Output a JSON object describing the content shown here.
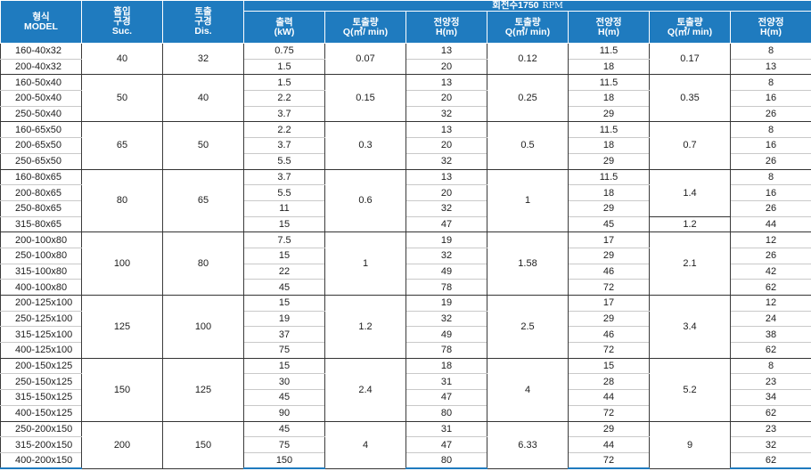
{
  "header": {
    "model": "형식\nMODEL",
    "suction": "흡입\n구경\nSuc.",
    "discharge": "토출\n구경\nDis.",
    "rpm_title": "회전수1750",
    "rpm_unit": "RPM",
    "output": "출력\n(kW)",
    "flow": "토출량\nQ(㎥/ min)",
    "head": "전양정\nH(m)"
  },
  "groups": [
    {
      "suction": "40",
      "discharge": "32",
      "flow1": "0.07",
      "flow2": "0.12",
      "flow3": "0.17",
      "rows": [
        {
          "model": "160-40x32",
          "kw": "0.75",
          "h1": "13",
          "h2": "11.5",
          "h3": "8"
        },
        {
          "model": "200-40x32",
          "kw": "1.5",
          "h1": "20",
          "h2": "18",
          "h3": "13"
        }
      ]
    },
    {
      "suction": "50",
      "discharge": "40",
      "flow1": "0.15",
      "flow2": "0.25",
      "flow3": "0.35",
      "rows": [
        {
          "model": "160-50x40",
          "kw": "1.5",
          "h1": "13",
          "h2": "11.5",
          "h3": "8"
        },
        {
          "model": "200-50x40",
          "kw": "2.2",
          "h1": "20",
          "h2": "18",
          "h3": "16"
        },
        {
          "model": "250-50x40",
          "kw": "3.7",
          "h1": "32",
          "h2": "29",
          "h3": "26"
        }
      ]
    },
    {
      "suction": "65",
      "discharge": "50",
      "flow1": "0.3",
      "flow2": "0.5",
      "flow3": "0.7",
      "rows": [
        {
          "model": "160-65x50",
          "kw": "2.2",
          "h1": "13",
          "h2": "11.5",
          "h3": "8"
        },
        {
          "model": "200-65x50",
          "kw": "3.7",
          "h1": "20",
          "h2": "18",
          "h3": "16"
        },
        {
          "model": "250-65x50",
          "kw": "5.5",
          "h1": "32",
          "h2": "29",
          "h3": "26"
        }
      ]
    },
    {
      "suction": "80",
      "discharge": "65",
      "flow1": "0.6",
      "flow2": "1",
      "flow3": "1.4",
      "flow3_last": "1.2",
      "rows": [
        {
          "model": "160-80x65",
          "kw": "3.7",
          "h1": "13",
          "h2": "11.5",
          "h3": "8"
        },
        {
          "model": "200-80x65",
          "kw": "5.5",
          "h1": "20",
          "h2": "18",
          "h3": "16"
        },
        {
          "model": "250-80x65",
          "kw": "11",
          "h1": "32",
          "h2": "29",
          "h3": "26"
        },
        {
          "model": "315-80x65",
          "kw": "15",
          "h1": "47",
          "h2": "45",
          "h3": "44"
        }
      ]
    },
    {
      "suction": "100",
      "discharge": "80",
      "flow1": "1",
      "flow2": "1.58",
      "flow3": "2.1",
      "rows": [
        {
          "model": "200-100x80",
          "kw": "7.5",
          "h1": "19",
          "h2": "17",
          "h3": "12"
        },
        {
          "model": "250-100x80",
          "kw": "15",
          "h1": "32",
          "h2": "29",
          "h3": "26"
        },
        {
          "model": "315-100x80",
          "kw": "22",
          "h1": "49",
          "h2": "46",
          "h3": "42"
        },
        {
          "model": "400-100x80",
          "kw": "45",
          "h1": "78",
          "h2": "72",
          "h3": "62"
        }
      ]
    },
    {
      "suction": "125",
      "discharge": "100",
      "flow1": "1.2",
      "flow2": "2.5",
      "flow3": "3.4",
      "rows": [
        {
          "model": "200-125x100",
          "kw": "15",
          "h1": "19",
          "h2": "17",
          "h3": "12"
        },
        {
          "model": "250-125x100",
          "kw": "19",
          "h1": "32",
          "h2": "29",
          "h3": "24"
        },
        {
          "model": "315-125x100",
          "kw": "37",
          "h1": "49",
          "h2": "46",
          "h3": "38"
        },
        {
          "model": "400-125x100",
          "kw": "75",
          "h1": "78",
          "h2": "72",
          "h3": "62"
        }
      ]
    },
    {
      "suction": "150",
      "discharge": "125",
      "flow1": "2.4",
      "flow2": "4",
      "flow3": "5.2",
      "rows": [
        {
          "model": "200-150x125",
          "kw": "15",
          "h1": "18",
          "h2": "15",
          "h3": "8"
        },
        {
          "model": "250-150x125",
          "kw": "30",
          "h1": "31",
          "h2": "28",
          "h3": "23"
        },
        {
          "model": "315-150x125",
          "kw": "45",
          "h1": "47",
          "h2": "44",
          "h3": "34"
        },
        {
          "model": "400-150x125",
          "kw": "90",
          "h1": "80",
          "h2": "72",
          "h3": "62"
        }
      ]
    },
    {
      "suction": "200",
      "discharge": "150",
      "flow1": "4",
      "flow2": "6.33",
      "flow3": "9",
      "rows": [
        {
          "model": "250-200x150",
          "kw": "45",
          "h1": "31",
          "h2": "29",
          "h3": "23"
        },
        {
          "model": "315-200x150",
          "kw": "75",
          "h1": "47",
          "h2": "44",
          "h3": "32"
        },
        {
          "model": "400-200x150",
          "kw": "150",
          "h1": "80",
          "h2": "72",
          "h3": "62"
        }
      ]
    }
  ]
}
